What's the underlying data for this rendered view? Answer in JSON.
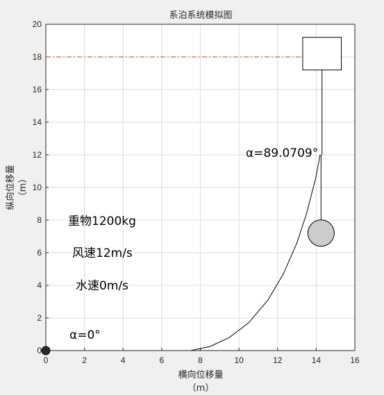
{
  "chart_data": {
    "type": "line",
    "title": "系泊系统模拟图",
    "xlabel": "横向位移量",
    "xlabel_unit": "（m）",
    "ylabel": "纵向位移量",
    "ylabel_unit": "（m）",
    "xlim": [
      0,
      16
    ],
    "ylim": [
      0,
      20
    ],
    "xticks": [
      0,
      2,
      4,
      6,
      8,
      10,
      12,
      14,
      16
    ],
    "yticks": [
      0,
      2,
      4,
      6,
      8,
      10,
      12,
      14,
      16,
      18,
      20
    ],
    "grid": true,
    "water_level": {
      "y": 18,
      "x_start": 0,
      "x_end": 13.2,
      "color": "#a0522d"
    },
    "anchor": {
      "x": 0,
      "y": 0
    },
    "chain": {
      "flat_segment": {
        "x": [
          0,
          7.5
        ],
        "y": [
          0,
          0
        ]
      },
      "curve": {
        "x": [
          7.5,
          8.5,
          9.5,
          10.5,
          11.5,
          12.3,
          13.0,
          13.5,
          14.0,
          14.2
        ],
        "y": [
          0,
          0.25,
          0.8,
          1.7,
          3.1,
          4.7,
          6.6,
          8.4,
          10.7,
          12.0
        ]
      }
    },
    "vertical_line": {
      "x": 14.3,
      "y": [
        12.0,
        17.2
      ]
    },
    "buoy_box": {
      "x_range": [
        13.3,
        15.3
      ],
      "y_range": [
        17.2,
        19.2
      ]
    },
    "weight": {
      "x": 14.25,
      "y": 7.2,
      "hanger_top": 12.0
    },
    "annotations": {
      "angle_top": "α=89.0709°",
      "weight": "重物1200kg",
      "wind": "风速12m/s",
      "water": "水速0m/s",
      "angle_bottom": "α=0°"
    }
  }
}
